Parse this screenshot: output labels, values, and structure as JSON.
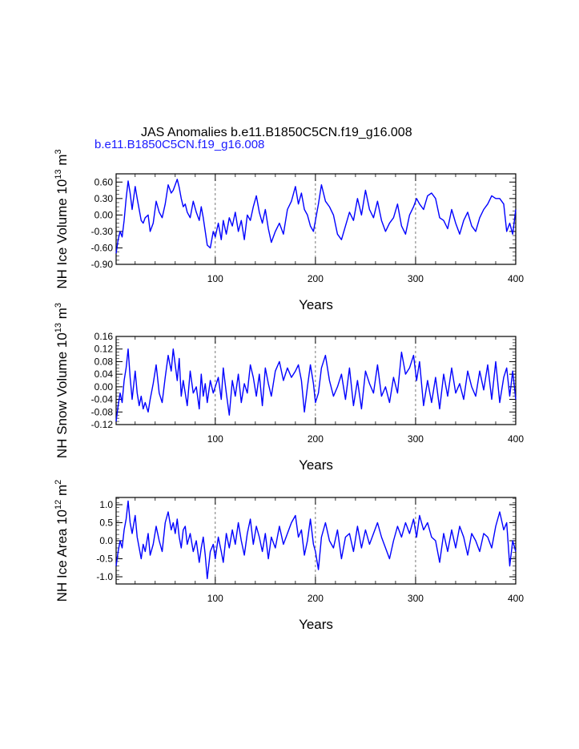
{
  "figure": {
    "title": "JAS Anomalies b.e11.B1850C5CN.f19_g16.008",
    "subtitle": "b.e11.B1850C5CN.f19_g16.008",
    "subtitle_color": "#1a1aff",
    "line_color": "#0000ff"
  },
  "chart_data": [
    {
      "type": "line",
      "name": "ice-volume",
      "ylabel_parts": {
        "main": "NH Ice Volume 10",
        "exp1": "13",
        "mid": " m",
        "exp2": "3"
      },
      "xlabel": "Years",
      "xlim": [
        1,
        400
      ],
      "ylim": [
        -0.9,
        0.75
      ],
      "xticks": [
        100,
        200,
        300,
        400
      ],
      "xtick_labels": [
        "100",
        "200",
        "300",
        "400"
      ],
      "yticks": [
        0.6,
        0.3,
        0.0,
        -0.3,
        -0.6,
        -0.9
      ],
      "ytick_labels": [
        "0.60",
        "0.30",
        "0.00",
        "-0.30",
        "-0.60",
        "-0.90"
      ],
      "guides": [
        100,
        200,
        300
      ],
      "series": [
        {
          "name": "NH Ice Volume",
          "x": [
            1,
            3,
            5,
            7,
            9,
            11,
            13,
            15,
            17,
            20,
            22,
            24,
            26,
            28,
            30,
            33,
            35,
            38,
            41,
            44,
            47,
            50,
            53,
            56,
            58,
            60,
            62,
            64,
            66,
            68,
            70,
            72,
            75,
            78,
            81,
            84,
            86,
            88,
            90,
            92,
            95,
            98,
            100,
            103,
            106,
            108,
            111,
            114,
            117,
            120,
            123,
            126,
            129,
            132,
            135,
            138,
            141,
            144,
            147,
            150,
            153,
            156,
            160,
            164,
            168,
            172,
            176,
            180,
            183,
            186,
            189,
            192,
            195,
            198,
            200,
            203,
            206,
            210,
            214,
            218,
            222,
            226,
            230,
            234,
            238,
            242,
            246,
            250,
            254,
            258,
            262,
            266,
            270,
            274,
            278,
            282,
            286,
            290,
            294,
            298,
            301,
            304,
            308,
            312,
            316,
            320,
            324,
            328,
            332,
            336,
            340,
            344,
            348,
            352,
            356,
            360,
            364,
            368,
            372,
            376,
            380,
            384,
            388,
            391,
            394,
            397,
            400
          ],
          "values": [
            -0.7,
            -0.45,
            -0.3,
            -0.4,
            -0.1,
            0.3,
            0.62,
            0.4,
            0.1,
            0.52,
            0.3,
            0.1,
            -0.1,
            -0.15,
            -0.05,
            0.0,
            -0.3,
            -0.15,
            0.25,
            0.05,
            -0.05,
            0.2,
            0.55,
            0.4,
            0.45,
            0.55,
            0.65,
            0.5,
            0.3,
            0.15,
            0.2,
            0.05,
            -0.05,
            0.25,
            0.05,
            -0.1,
            0.15,
            -0.05,
            -0.3,
            -0.55,
            -0.6,
            -0.3,
            -0.4,
            -0.15,
            -0.45,
            -0.1,
            -0.35,
            -0.05,
            -0.2,
            0.05,
            -0.3,
            -0.1,
            -0.45,
            0.0,
            -0.1,
            0.15,
            0.35,
            0.05,
            -0.15,
            0.1,
            -0.25,
            -0.5,
            -0.3,
            -0.15,
            -0.35,
            0.1,
            0.25,
            0.52,
            0.2,
            0.4,
            0.1,
            0.0,
            -0.2,
            -0.3,
            -0.1,
            0.2,
            0.55,
            0.25,
            0.15,
            0.0,
            -0.35,
            -0.45,
            -0.2,
            0.05,
            -0.1,
            0.3,
            0.0,
            0.45,
            0.1,
            -0.05,
            0.25,
            -0.1,
            -0.3,
            -0.15,
            -0.05,
            0.2,
            -0.2,
            -0.35,
            0.0,
            0.15,
            0.3,
            0.2,
            0.1,
            0.35,
            0.4,
            0.3,
            -0.05,
            -0.1,
            -0.25,
            0.1,
            -0.15,
            -0.35,
            -0.1,
            0.05,
            -0.2,
            -0.3,
            -0.05,
            0.1,
            0.2,
            0.35,
            0.3,
            0.3,
            0.2,
            -0.3,
            -0.15,
            -0.35,
            0.1
          ]
        }
      ]
    },
    {
      "type": "line",
      "name": "snow-volume",
      "ylabel_parts": {
        "main": "NH Snow Volume 10",
        "exp1": "13",
        "mid": " m",
        "exp2": "3"
      },
      "xlabel": "Years",
      "xlim": [
        1,
        400
      ],
      "ylim": [
        -0.12,
        0.16
      ],
      "xticks": [
        100,
        200,
        300,
        400
      ],
      "xtick_labels": [
        "100",
        "200",
        "300",
        "400"
      ],
      "yticks": [
        0.16,
        0.12,
        0.08,
        0.04,
        0.0,
        -0.04,
        -0.08,
        -0.12
      ],
      "ytick_labels": [
        "0.16",
        "0.12",
        "0.08",
        "0.04",
        "0.00",
        "-0.04",
        "-0.08",
        "-0.12"
      ],
      "guides": [
        100,
        200,
        300
      ],
      "series": [
        {
          "name": "NH Snow Volume",
          "x": [
            1,
            3,
            5,
            7,
            9,
            11,
            13,
            15,
            17,
            20,
            22,
            24,
            26,
            28,
            30,
            33,
            35,
            38,
            41,
            44,
            47,
            50,
            53,
            56,
            58,
            60,
            62,
            64,
            66,
            68,
            70,
            72,
            75,
            78,
            81,
            84,
            86,
            88,
            90,
            92,
            95,
            98,
            100,
            103,
            106,
            108,
            111,
            114,
            117,
            120,
            123,
            126,
            129,
            132,
            135,
            138,
            141,
            144,
            147,
            150,
            153,
            156,
            160,
            164,
            168,
            172,
            176,
            180,
            183,
            186,
            189,
            192,
            195,
            198,
            200,
            203,
            206,
            210,
            214,
            218,
            222,
            226,
            230,
            234,
            238,
            242,
            246,
            250,
            254,
            258,
            262,
            266,
            270,
            274,
            278,
            282,
            286,
            290,
            294,
            298,
            301,
            304,
            308,
            312,
            316,
            320,
            324,
            328,
            332,
            336,
            340,
            344,
            348,
            352,
            356,
            360,
            364,
            368,
            372,
            376,
            380,
            384,
            388,
            391,
            394,
            397,
            400
          ],
          "values": [
            -0.11,
            -0.06,
            -0.02,
            -0.05,
            0.02,
            0.06,
            0.12,
            0.03,
            -0.04,
            0.05,
            -0.02,
            -0.06,
            -0.03,
            -0.07,
            -0.05,
            -0.08,
            -0.04,
            0.01,
            0.07,
            -0.02,
            -0.05,
            0.03,
            0.1,
            0.05,
            0.12,
            0.07,
            0.02,
            0.09,
            -0.03,
            0.02,
            -0.02,
            -0.06,
            0.05,
            -0.02,
            0.0,
            -0.07,
            0.04,
            -0.03,
            0.01,
            -0.05,
            0.02,
            -0.02,
            0.0,
            0.03,
            -0.04,
            0.06,
            -0.02,
            -0.09,
            0.02,
            -0.03,
            0.04,
            -0.05,
            0.01,
            -0.02,
            0.07,
            0.03,
            -0.03,
            0.04,
            -0.06,
            0.06,
            0.01,
            -0.03,
            0.05,
            0.08,
            0.02,
            0.06,
            0.03,
            0.05,
            0.07,
            0.02,
            -0.08,
            0.0,
            0.07,
            0.01,
            -0.05,
            -0.02,
            0.06,
            0.1,
            0.02,
            -0.03,
            0.0,
            0.04,
            -0.04,
            0.06,
            -0.06,
            0.02,
            -0.07,
            0.05,
            0.01,
            -0.02,
            0.07,
            -0.03,
            0.0,
            -0.05,
            0.03,
            -0.02,
            0.11,
            0.04,
            0.06,
            0.1,
            0.02,
            0.08,
            -0.06,
            0.02,
            -0.05,
            0.03,
            -0.07,
            0.04,
            -0.03,
            0.06,
            -0.02,
            0.01,
            -0.04,
            0.05,
            0.0,
            -0.03,
            0.05,
            -0.01,
            0.07,
            -0.04,
            0.08,
            -0.05,
            0.03,
            0.06,
            -0.03,
            0.05,
            -0.04
          ]
        }
      ]
    },
    {
      "type": "line",
      "name": "ice-area",
      "ylabel_parts": {
        "main": "NH Ice Area 10",
        "exp1": "12",
        "mid": " m",
        "exp2": "2"
      },
      "xlabel": "Years",
      "xlim": [
        1,
        400
      ],
      "ylim": [
        -1.2,
        1.2
      ],
      "xticks": [
        100,
        200,
        300,
        400
      ],
      "xtick_labels": [
        "100",
        "200",
        "300",
        "400"
      ],
      "yticks": [
        1.0,
        0.5,
        0.0,
        -0.5,
        -1.0
      ],
      "ytick_labels": [
        "1.0",
        "0.5",
        "0.0",
        "-0.5",
        "-1.0"
      ],
      "guides": [
        100,
        200,
        300
      ],
      "series": [
        {
          "name": "NH Ice Area",
          "x": [
            1,
            3,
            5,
            7,
            9,
            11,
            13,
            15,
            17,
            20,
            22,
            24,
            26,
            28,
            30,
            33,
            35,
            38,
            41,
            44,
            47,
            50,
            53,
            56,
            58,
            60,
            62,
            64,
            66,
            68,
            70,
            72,
            75,
            78,
            81,
            84,
            86,
            88,
            90,
            92,
            95,
            98,
            100,
            103,
            106,
            108,
            111,
            114,
            117,
            120,
            123,
            126,
            129,
            132,
            135,
            138,
            141,
            144,
            147,
            150,
            153,
            156,
            160,
            164,
            168,
            172,
            176,
            180,
            183,
            186,
            189,
            192,
            195,
            198,
            200,
            203,
            206,
            210,
            214,
            218,
            222,
            226,
            230,
            234,
            238,
            242,
            246,
            250,
            254,
            258,
            262,
            266,
            270,
            274,
            278,
            282,
            286,
            290,
            294,
            298,
            301,
            304,
            308,
            312,
            316,
            320,
            324,
            328,
            332,
            336,
            340,
            344,
            348,
            352,
            356,
            360,
            364,
            368,
            372,
            376,
            380,
            384,
            388,
            391,
            394,
            397,
            400
          ],
          "values": [
            -0.7,
            -0.3,
            0.0,
            -0.2,
            0.3,
            0.6,
            1.1,
            0.5,
            0.2,
            0.7,
            0.1,
            -0.2,
            -0.5,
            -0.1,
            -0.3,
            0.2,
            -0.4,
            -0.1,
            0.4,
            0.0,
            -0.3,
            0.5,
            0.8,
            0.3,
            0.5,
            0.2,
            0.6,
            0.1,
            -0.2,
            0.3,
            0.4,
            -0.1,
            0.2,
            -0.3,
            0.0,
            -0.6,
            -0.2,
            0.1,
            -0.4,
            -1.05,
            -0.3,
            -0.1,
            -0.5,
            0.1,
            -0.3,
            -0.6,
            0.2,
            -0.2,
            0.3,
            -0.1,
            0.5,
            0.0,
            -0.4,
            0.2,
            0.6,
            -0.1,
            0.4,
            0.1,
            -0.3,
            0.2,
            -0.5,
            0.1,
            -0.2,
            0.4,
            -0.1,
            0.2,
            0.5,
            0.7,
            0.1,
            0.3,
            -0.4,
            0.0,
            0.6,
            -0.1,
            -0.3,
            -0.8,
            0.1,
            0.5,
            0.0,
            -0.2,
            0.3,
            -0.5,
            0.1,
            0.2,
            -0.3,
            0.4,
            -0.2,
            0.3,
            -0.1,
            0.2,
            0.5,
            0.1,
            -0.2,
            -0.5,
            0.0,
            0.4,
            0.1,
            0.5,
            0.2,
            0.6,
            0.1,
            0.7,
            0.3,
            0.5,
            0.1,
            0.0,
            -0.6,
            0.2,
            -0.3,
            0.3,
            -0.2,
            0.4,
            0.1,
            -0.4,
            0.2,
            0.0,
            -0.3,
            0.2,
            0.1,
            -0.2,
            0.4,
            0.8,
            0.3,
            0.5,
            -0.7,
            0.0,
            -0.3
          ]
        }
      ]
    }
  ]
}
